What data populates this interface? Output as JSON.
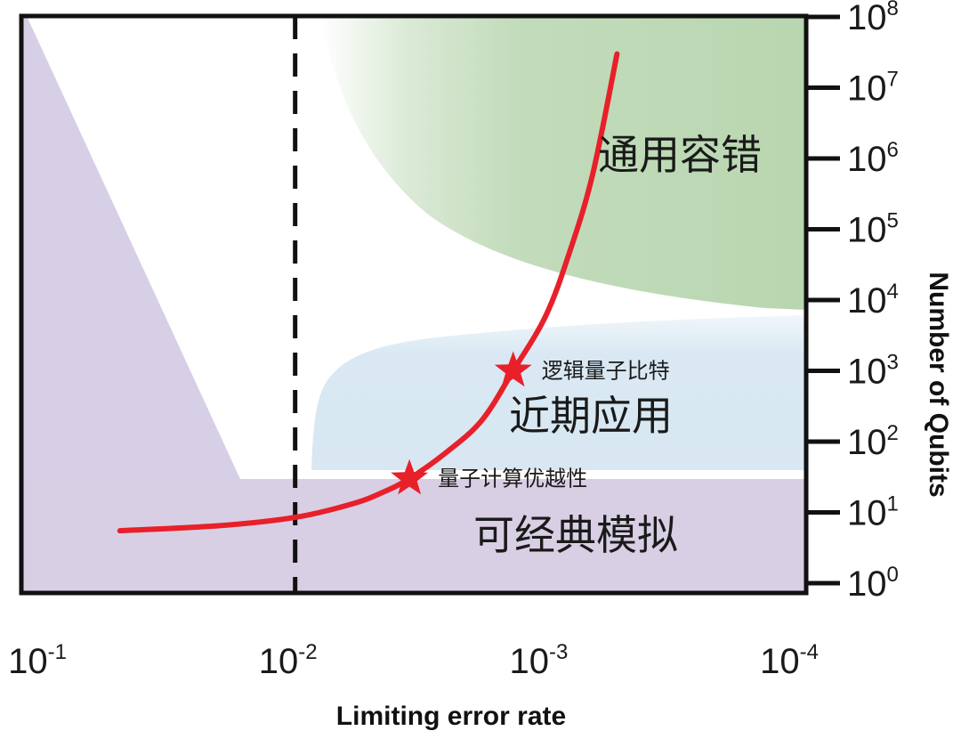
{
  "chart_data": {
    "type": "line",
    "title": "",
    "xlabel": "Limiting error rate",
    "ylabel": "Number of Qubits",
    "x_scale": "log",
    "y_scale": "log",
    "x_reversed": true,
    "xlim": [
      0.1,
      0.0001
    ],
    "ylim": [
      1,
      100000000
    ],
    "x_ticks": [
      {
        "base": "10",
        "exp": "-1",
        "value": 0.1
      },
      {
        "base": "10",
        "exp": "-2",
        "value": 0.01
      },
      {
        "base": "10",
        "exp": "-3",
        "value": 0.001
      },
      {
        "base": "10",
        "exp": "-4",
        "value": 0.0001
      }
    ],
    "y_ticks": [
      {
        "base": "10",
        "exp": "0",
        "value": 1
      },
      {
        "base": "10",
        "exp": "1",
        "value": 10
      },
      {
        "base": "10",
        "exp": "2",
        "value": 100
      },
      {
        "base": "10",
        "exp": "3",
        "value": 1000
      },
      {
        "base": "10",
        "exp": "4",
        "value": 10000
      },
      {
        "base": "10",
        "exp": "5",
        "value": 100000
      },
      {
        "base": "10",
        "exp": "6",
        "value": 1000000
      },
      {
        "base": "10",
        "exp": "7",
        "value": 10000000
      },
      {
        "base": "10",
        "exp": "8",
        "value": 100000000
      }
    ],
    "threshold_line": {
      "x": 0.01,
      "style": "dashed",
      "color": "#111111"
    },
    "series": [
      {
        "color": "#e8202a",
        "points": [
          {
            "x": 0.05,
            "y": 5.5
          },
          {
            "x": 0.02,
            "y": 6.5
          },
          {
            "x": 0.01,
            "y": 8.5
          },
          {
            "x": 0.006,
            "y": 13
          },
          {
            "x": 0.0045,
            "y": 19
          },
          {
            "x": 0.0035,
            "y": 30
          },
          {
            "x": 0.0025,
            "y": 70
          },
          {
            "x": 0.0018,
            "y": 200
          },
          {
            "x": 0.00135,
            "y": 1000
          },
          {
            "x": 0.001,
            "y": 6000
          },
          {
            "x": 0.0008,
            "y": 50000
          },
          {
            "x": 0.00065,
            "y": 600000
          },
          {
            "x": 0.00052,
            "y": 30000000
          }
        ]
      }
    ],
    "markers": [
      {
        "label": "量子计算优越性",
        "x": 0.0035,
        "y": 30,
        "shape": "star",
        "color": "#e8202a"
      },
      {
        "label": "逻辑量子比特",
        "x": 0.00135,
        "y": 1000,
        "shape": "star",
        "color": "#e8202a"
      }
    ],
    "regions": [
      {
        "label": "可经典模拟",
        "color": "#d6cfe6"
      },
      {
        "label": "近期应用",
        "color": "#d6e6f1"
      },
      {
        "label": "通用容错",
        "color": "#b9d7b2"
      }
    ]
  }
}
